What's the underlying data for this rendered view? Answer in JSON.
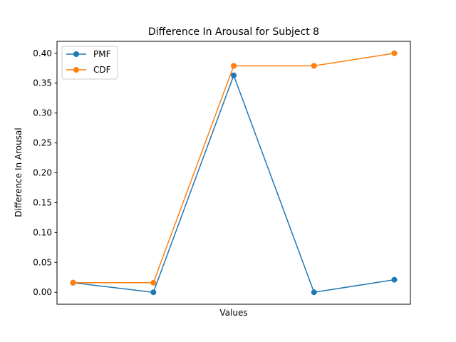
{
  "chart_data": {
    "type": "line",
    "title": "Difference In Arousal for Subject 8",
    "xlabel": "Values",
    "ylabel": "Difference In Arousal",
    "x": [
      1,
      2,
      3,
      4,
      5
    ],
    "xlim": [
      0.8,
      5.2
    ],
    "ylim": [
      -0.02,
      0.42
    ],
    "yticks": [
      "0.00",
      "0.05",
      "0.10",
      "0.15",
      "0.20",
      "0.25",
      "0.30",
      "0.35",
      "0.40"
    ],
    "xticks_visible": false,
    "grid": false,
    "legend_position": "upper left",
    "marker": "circle",
    "series": [
      {
        "name": "PMF",
        "color": "#1f77b4",
        "values": [
          0.016,
          0.0,
          0.363,
          0.0,
          0.021
        ]
      },
      {
        "name": "CDF",
        "color": "#ff7f0e",
        "values": [
          0.016,
          0.016,
          0.379,
          0.379,
          0.4
        ]
      }
    ]
  }
}
